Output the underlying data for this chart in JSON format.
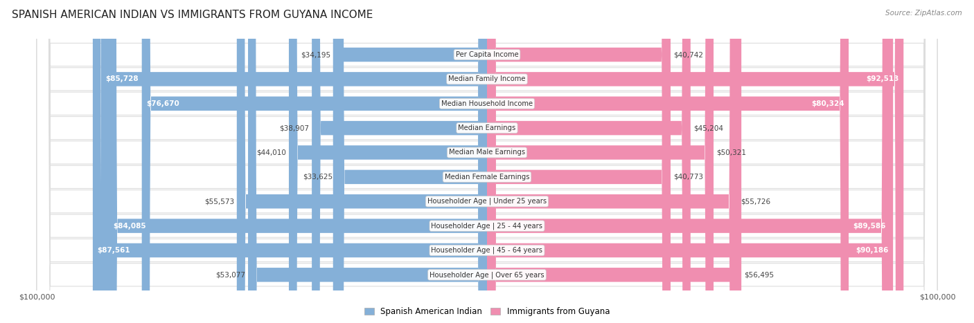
{
  "title": "SPANISH AMERICAN INDIAN VS IMMIGRANTS FROM GUYANA INCOME",
  "source": "Source: ZipAtlas.com",
  "categories": [
    "Per Capita Income",
    "Median Family Income",
    "Median Household Income",
    "Median Earnings",
    "Median Male Earnings",
    "Median Female Earnings",
    "Householder Age | Under 25 years",
    "Householder Age | 25 - 44 years",
    "Householder Age | 45 - 64 years",
    "Householder Age | Over 65 years"
  ],
  "left_values": [
    34195,
    85728,
    76670,
    38907,
    44010,
    33625,
    55573,
    84085,
    87561,
    53077
  ],
  "right_values": [
    40742,
    92513,
    80324,
    45204,
    50321,
    40773,
    55726,
    89586,
    90186,
    56495
  ],
  "left_labels": [
    "$34,195",
    "$85,728",
    "$76,670",
    "$38,907",
    "$44,010",
    "$33,625",
    "$55,573",
    "$84,085",
    "$87,561",
    "$53,077"
  ],
  "right_labels": [
    "$40,742",
    "$92,513",
    "$80,324",
    "$45,204",
    "$50,321",
    "$40,773",
    "$55,726",
    "$89,586",
    "$90,186",
    "$56,495"
  ],
  "max_value": 100000,
  "left_color": "#85B0D8",
  "right_color": "#F08EB0",
  "left_color_bright": "#5A8EC4",
  "right_color_bright": "#E8609A",
  "label_color_dark": "#ffffff",
  "label_color_light": "#444444",
  "threshold": 62000,
  "legend_left": "Spanish American Indian",
  "legend_right": "Immigrants from Guyana",
  "bg_color": "#ffffff",
  "row_bg_color": "#ffffff",
  "row_border_color": "#dddddd"
}
